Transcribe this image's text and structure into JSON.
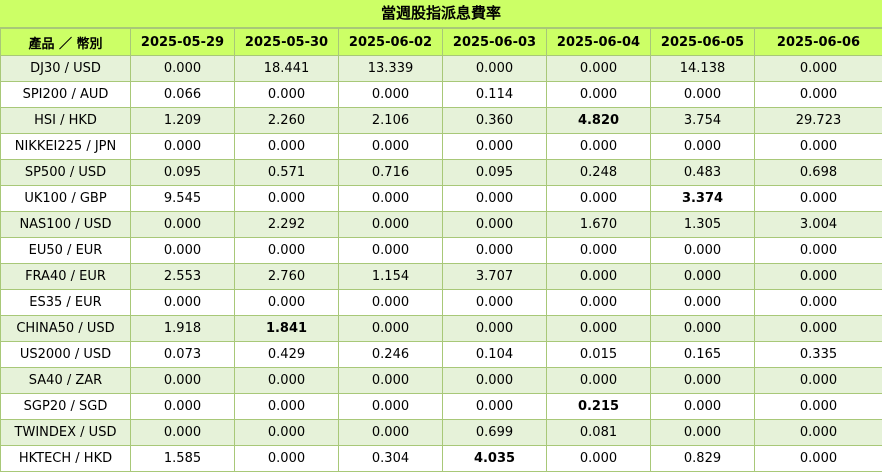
{
  "title": "當週股指派息費率",
  "header": {
    "product_label": "產品 ／ 幣別",
    "dates": [
      "2025-05-29",
      "2025-05-30",
      "2025-06-02",
      "2025-06-03",
      "2025-06-04",
      "2025-06-05",
      "2025-06-06"
    ]
  },
  "rows": [
    {
      "product": "DJ30 / USD",
      "values": [
        "0.000",
        "18.441",
        "13.339",
        "0.000",
        "0.000",
        "14.138",
        "0.000"
      ],
      "bold": []
    },
    {
      "product": "SPI200 / AUD",
      "values": [
        "0.066",
        "0.000",
        "0.000",
        "0.114",
        "0.000",
        "0.000",
        "0.000"
      ],
      "bold": []
    },
    {
      "product": "HSI / HKD",
      "values": [
        "1.209",
        "2.260",
        "2.106",
        "0.360",
        "4.820",
        "3.754",
        "29.723"
      ],
      "bold": [
        4
      ]
    },
    {
      "product": "NIKKEI225 / JPN",
      "values": [
        "0.000",
        "0.000",
        "0.000",
        "0.000",
        "0.000",
        "0.000",
        "0.000"
      ],
      "bold": []
    },
    {
      "product": "SP500 / USD",
      "values": [
        "0.095",
        "0.571",
        "0.716",
        "0.095",
        "0.248",
        "0.483",
        "0.698"
      ],
      "bold": []
    },
    {
      "product": "UK100 / GBP",
      "values": [
        "9.545",
        "0.000",
        "0.000",
        "0.000",
        "0.000",
        "3.374",
        "0.000"
      ],
      "bold": [
        5
      ]
    },
    {
      "product": "NAS100 / USD",
      "values": [
        "0.000",
        "2.292",
        "0.000",
        "0.000",
        "1.670",
        "1.305",
        "3.004"
      ],
      "bold": []
    },
    {
      "product": "EU50 / EUR",
      "values": [
        "0.000",
        "0.000",
        "0.000",
        "0.000",
        "0.000",
        "0.000",
        "0.000"
      ],
      "bold": []
    },
    {
      "product": "FRA40 / EUR",
      "values": [
        "2.553",
        "2.760",
        "1.154",
        "3.707",
        "0.000",
        "0.000",
        "0.000"
      ],
      "bold": []
    },
    {
      "product": "ES35 / EUR",
      "values": [
        "0.000",
        "0.000",
        "0.000",
        "0.000",
        "0.000",
        "0.000",
        "0.000"
      ],
      "bold": []
    },
    {
      "product": "CHINA50 / USD",
      "values": [
        "1.918",
        "1.841",
        "0.000",
        "0.000",
        "0.000",
        "0.000",
        "0.000"
      ],
      "bold": [
        1
      ]
    },
    {
      "product": "US2000 / USD",
      "values": [
        "0.073",
        "0.429",
        "0.246",
        "0.104",
        "0.015",
        "0.165",
        "0.335"
      ],
      "bold": []
    },
    {
      "product": "SA40 / ZAR",
      "values": [
        "0.000",
        "0.000",
        "0.000",
        "0.000",
        "0.000",
        "0.000",
        "0.000"
      ],
      "bold": []
    },
    {
      "product": "SGP20 / SGD",
      "values": [
        "0.000",
        "0.000",
        "0.000",
        "0.000",
        "0.215",
        "0.000",
        "0.000"
      ],
      "bold": [
        4
      ]
    },
    {
      "product": "TWINDEX / USD",
      "values": [
        "0.000",
        "0.000",
        "0.000",
        "0.699",
        "0.081",
        "0.000",
        "0.000"
      ],
      "bold": []
    },
    {
      "product": "HKTECH / HKD",
      "values": [
        "1.585",
        "0.000",
        "0.304",
        "4.035",
        "0.000",
        "0.829",
        "0.000"
      ],
      "bold": [
        3
      ]
    }
  ]
}
